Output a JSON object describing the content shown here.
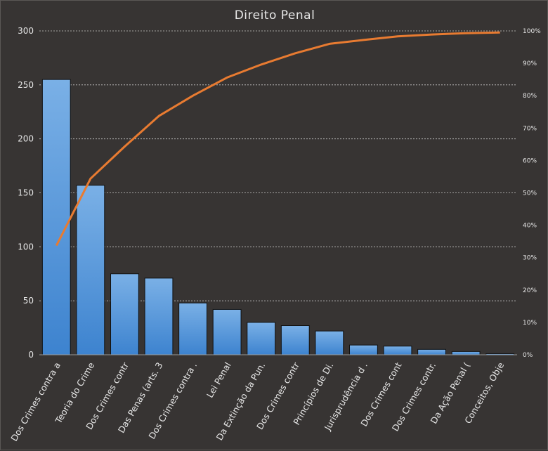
{
  "chart_data": {
    "type": "bar",
    "title": "Direito Penal",
    "categories": [
      "Dos Crimes contra a",
      "Teoria do Crime",
      "Dos Crimes contr",
      "Das Penas (arts. 3",
      "Dos Crimes contra .",
      "Lei Penal",
      "Da Extinção da Pun.",
      "Dos Crimes contr",
      "Princípios de Di.",
      "Jurisprudência d .",
      "Dos Crimes cont",
      "Dos Crimes contr.",
      "Da Ação Penal (",
      "Conceitos, Obje"
    ],
    "series": [
      {
        "type": "bar",
        "values": [
          255,
          157,
          75,
          71,
          48,
          42,
          30,
          27,
          22,
          9,
          8,
          5,
          3,
          1
        ]
      },
      {
        "type": "line",
        "axis": "right",
        "values": [
          33.7,
          54.4,
          64.3,
          73.7,
          80.0,
          85.6,
          89.6,
          93.1,
          96.0,
          97.2,
          98.3,
          98.9,
          99.3,
          99.5
        ]
      }
    ],
    "ylim": [
      0,
      300
    ],
    "yticks": [
      "0",
      "50",
      "100",
      "150",
      "200",
      "250",
      "300"
    ],
    "y2lim": [
      0,
      100
    ],
    "y2ticks": [
      "0%",
      "10%",
      "20%",
      "30%",
      "40%",
      "50%",
      "60%",
      "70%",
      "80%",
      "90%",
      "100%"
    ],
    "grid": true,
    "colors": {
      "bar": "#4a90d9",
      "bar_light": "#7ab0e6",
      "line": "#e87b31",
      "grid": "#c8c8c8",
      "background": "#373433"
    }
  }
}
